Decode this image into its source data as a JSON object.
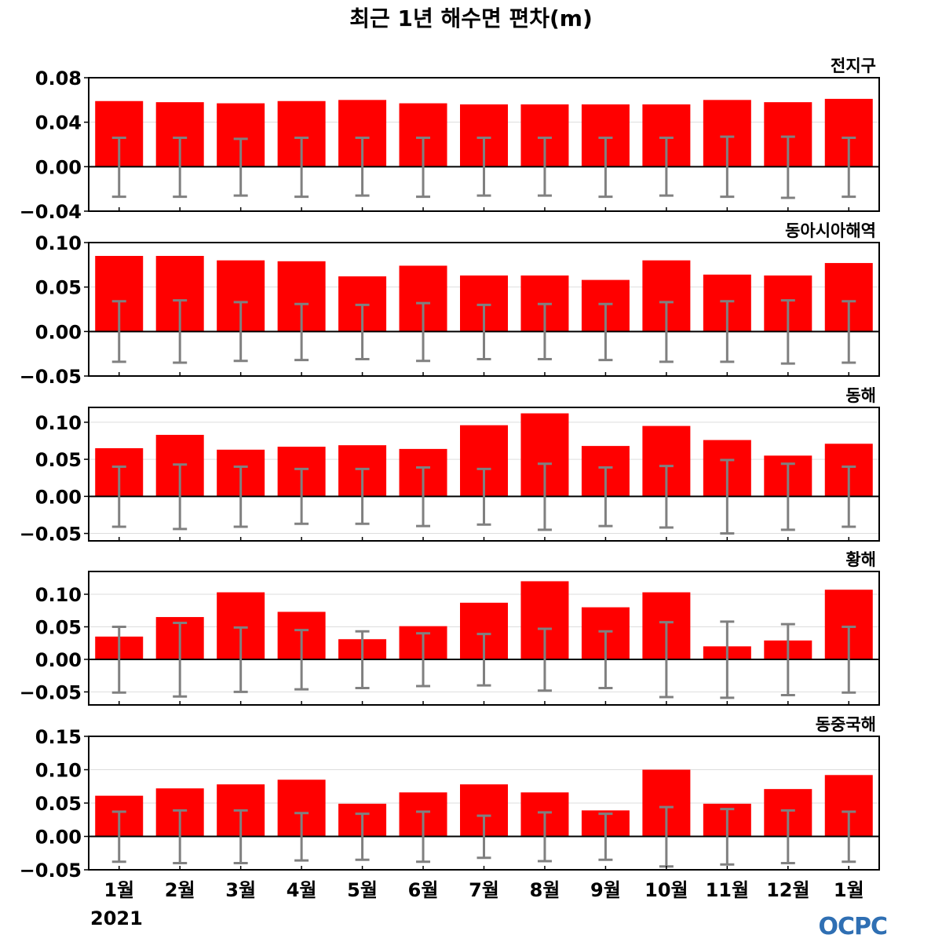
{
  "chart_data": {
    "type": "bar",
    "title": "최근 1년 해수면 편차(m)",
    "categories": [
      "1월",
      "2월",
      "3월",
      "4월",
      "5월",
      "6월",
      "7월",
      "8월",
      "9월",
      "10월",
      "11월",
      "12월",
      "1월"
    ],
    "year_label": "2021",
    "logo": "OCPC",
    "colors": {
      "bar": "#ff0000",
      "error_bar": "#808080",
      "zero_line": "#000000",
      "grid": "#dddddd"
    },
    "panels": [
      {
        "name": "전지구",
        "ylim": [
          -0.04,
          0.08
        ],
        "yticks": [
          "0.08",
          "0.04",
          "0.00",
          "−0.04"
        ],
        "ytick_values": [
          0.08,
          0.04,
          0.0,
          -0.04
        ],
        "values": [
          0.059,
          0.058,
          0.057,
          0.059,
          0.06,
          0.057,
          0.056,
          0.056,
          0.056,
          0.056,
          0.06,
          0.058,
          0.061
        ],
        "error_upper": [
          0.026,
          0.026,
          0.025,
          0.026,
          0.026,
          0.026,
          0.026,
          0.026,
          0.026,
          0.026,
          0.027,
          0.027,
          0.026
        ],
        "error_lower": [
          -0.027,
          -0.027,
          -0.026,
          -0.027,
          -0.026,
          -0.027,
          -0.026,
          -0.026,
          -0.027,
          -0.026,
          -0.027,
          -0.028,
          -0.027
        ]
      },
      {
        "name": "동아시아해역",
        "ylim": [
          -0.05,
          0.1
        ],
        "yticks": [
          "0.10",
          "0.05",
          "0.00",
          "−0.05"
        ],
        "ytick_values": [
          0.1,
          0.05,
          0.0,
          -0.05
        ],
        "values": [
          0.085,
          0.085,
          0.08,
          0.079,
          0.062,
          0.074,
          0.063,
          0.063,
          0.058,
          0.08,
          0.064,
          0.063,
          0.077
        ],
        "error_upper": [
          0.034,
          0.035,
          0.033,
          0.031,
          0.03,
          0.032,
          0.03,
          0.031,
          0.031,
          0.033,
          0.034,
          0.035,
          0.034
        ],
        "error_lower": [
          -0.034,
          -0.035,
          -0.033,
          -0.032,
          -0.031,
          -0.033,
          -0.031,
          -0.031,
          -0.032,
          -0.034,
          -0.034,
          -0.036,
          -0.035
        ]
      },
      {
        "name": "동해",
        "ylim": [
          -0.06,
          0.12
        ],
        "yticks": [
          "0.10",
          "0.05",
          "0.00",
          "−0.05"
        ],
        "ytick_values": [
          0.1,
          0.05,
          0.0,
          -0.05
        ],
        "values": [
          0.065,
          0.083,
          0.063,
          0.067,
          0.069,
          0.064,
          0.096,
          0.112,
          0.068,
          0.095,
          0.076,
          0.055,
          0.071
        ],
        "error_upper": [
          0.04,
          0.043,
          0.04,
          0.037,
          0.037,
          0.039,
          0.037,
          0.044,
          0.039,
          0.041,
          0.049,
          0.044,
          0.04
        ],
        "error_lower": [
          -0.041,
          -0.044,
          -0.041,
          -0.037,
          -0.037,
          -0.04,
          -0.038,
          -0.045,
          -0.04,
          -0.042,
          -0.05,
          -0.045,
          -0.041
        ]
      },
      {
        "name": "황해",
        "ylim": [
          -0.07,
          0.135
        ],
        "yticks": [
          "0.10",
          "0.05",
          "0.00",
          "−0.05"
        ],
        "ytick_values": [
          0.1,
          0.05,
          0.0,
          -0.05
        ],
        "values": [
          0.035,
          0.065,
          0.103,
          0.073,
          0.031,
          0.051,
          0.087,
          0.12,
          0.08,
          0.103,
          0.02,
          0.029,
          0.107
        ],
        "error_upper": [
          0.05,
          0.056,
          0.049,
          0.045,
          0.043,
          0.04,
          0.039,
          0.047,
          0.043,
          0.057,
          0.058,
          0.054,
          0.05
        ],
        "error_lower": [
          -0.051,
          -0.057,
          -0.05,
          -0.046,
          -0.044,
          -0.041,
          -0.04,
          -0.048,
          -0.044,
          -0.058,
          -0.059,
          -0.055,
          -0.051
        ]
      },
      {
        "name": "동중국해",
        "ylim": [
          -0.05,
          0.15
        ],
        "yticks": [
          "0.15",
          "0.10",
          "0.05",
          "0.00",
          "−0.05"
        ],
        "ytick_values": [
          0.15,
          0.1,
          0.05,
          0.0,
          -0.05
        ],
        "values": [
          0.061,
          0.072,
          0.078,
          0.085,
          0.049,
          0.066,
          0.078,
          0.066,
          0.039,
          0.1,
          0.049,
          0.071,
          0.092
        ],
        "error_upper": [
          0.037,
          0.039,
          0.039,
          0.035,
          0.034,
          0.037,
          0.031,
          0.036,
          0.034,
          0.044,
          0.041,
          0.039,
          0.037
        ],
        "error_lower": [
          -0.038,
          -0.04,
          -0.04,
          -0.036,
          -0.035,
          -0.038,
          -0.032,
          -0.037,
          -0.035,
          -0.045,
          -0.042,
          -0.04,
          -0.038
        ]
      }
    ]
  }
}
